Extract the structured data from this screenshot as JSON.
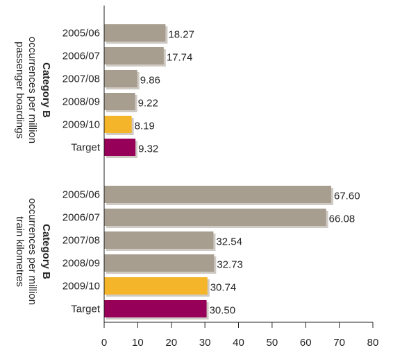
{
  "chart_data": [
    {
      "type": "bar",
      "orientation": "horizontal",
      "group_label": [
        "Category B",
        "occurrences per million",
        "passenger boardings"
      ],
      "categories": [
        "2005/06",
        "2006/07",
        "2007/08",
        "2008/09",
        "2009/10",
        "Target"
      ],
      "values": [
        18.27,
        17.74,
        9.86,
        9.22,
        8.19,
        9.32
      ],
      "value_labels": [
        "18.27",
        "17.74",
        "9.86",
        "9.22",
        "8.19",
        "9.32"
      ],
      "bar_colors": [
        "#a79e90",
        "#a79e90",
        "#a79e90",
        "#a79e90",
        "#f5b52b",
        "#960058"
      ]
    },
    {
      "type": "bar",
      "orientation": "horizontal",
      "group_label": [
        "Category B",
        "occurrences per million",
        "train kilometres"
      ],
      "categories": [
        "2005/06",
        "2006/07",
        "2007/08",
        "2008/09",
        "2009/10",
        "Target"
      ],
      "values": [
        67.6,
        66.08,
        32.54,
        32.73,
        30.74,
        30.5
      ],
      "value_labels": [
        "67.60",
        "66.08",
        "32.54",
        "32.73",
        "30.74",
        "30.50"
      ],
      "bar_colors": [
        "#a79e90",
        "#a79e90",
        "#a79e90",
        "#a79e90",
        "#f5b52b",
        "#960058"
      ]
    }
  ],
  "x_axis": {
    "min": 0,
    "max": 80,
    "ticks": [
      "0",
      "10",
      "20",
      "30",
      "40",
      "50",
      "60",
      "70",
      "80"
    ]
  }
}
